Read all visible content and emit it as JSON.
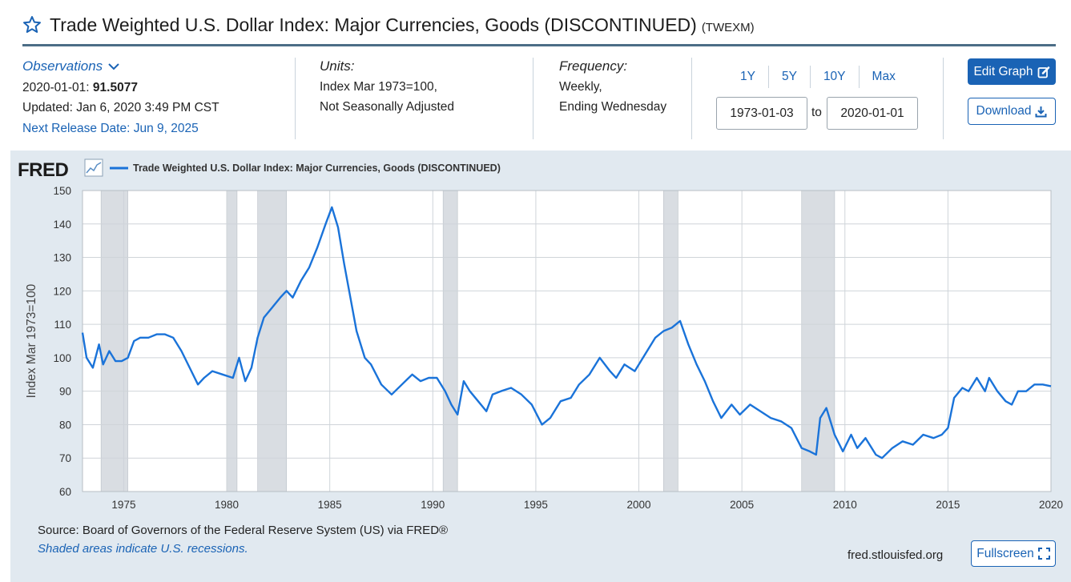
{
  "header": {
    "title": "Trade Weighted U.S. Dollar Index: Major Currencies, Goods (DISCONTINUED)",
    "series_id": "(TWEXM)"
  },
  "meta": {
    "observations_label": "Observations",
    "observation_date": "2020-01-01:",
    "observation_value": "91.5077",
    "updated": "Updated: Jan 6, 2020 3:49 PM CST",
    "next_release": "Next Release Date: Jun 9, 2025",
    "units_head": "Units:",
    "units_line1": "Index Mar 1973=100,",
    "units_line2": "Not Seasonally Adjusted",
    "frequency_head": "Frequency:",
    "frequency_line1": "Weekly,",
    "frequency_line2": "Ending Wednesday"
  },
  "range": {
    "links": [
      "1Y",
      "5Y",
      "10Y",
      "Max"
    ],
    "start_date": "1973-01-03",
    "to_label": "to",
    "end_date": "2020-01-01"
  },
  "buttons": {
    "edit_graph": "Edit Graph",
    "download": "Download",
    "fullscreen": "Fullscreen"
  },
  "footer": {
    "source": "Source: Board of Governors of the Federal Reserve System (US) via FRED®",
    "recession_note": "Shaded areas indicate U.S. recessions.",
    "site": "fred.stlouisfed.org"
  },
  "brand": {
    "logo_text": "FRED"
  },
  "chart_data": {
    "type": "line",
    "legend": "Trade Weighted U.S. Dollar Index: Major Currencies, Goods (DISCONTINUED)",
    "legend_position": "top-left",
    "ylabel": "Index Mar 1973=100",
    "xlim": [
      1973.0,
      2020.0
    ],
    "ylim": [
      60,
      150
    ],
    "x_ticks": [
      1975,
      1980,
      1985,
      1990,
      1995,
      2000,
      2005,
      2010,
      2015,
      2020
    ],
    "y_ticks": [
      60,
      70,
      80,
      90,
      100,
      110,
      120,
      130,
      140,
      150
    ],
    "grid": true,
    "line_color": "#1a73d9",
    "recession_color": "#d9dde2",
    "recessions": [
      [
        1973.9,
        1975.2
      ],
      [
        1980.0,
        1980.5
      ],
      [
        1981.5,
        1982.9
      ],
      [
        1990.5,
        1991.2
      ],
      [
        2001.2,
        2001.9
      ],
      [
        2007.9,
        2009.5
      ]
    ],
    "series": [
      {
        "x": [
          1973.0,
          1973.2,
          1973.5,
          1973.8,
          1974.0,
          1974.3,
          1974.6,
          1974.9,
          1975.2,
          1975.5,
          1975.8,
          1976.2,
          1976.6,
          1977.0,
          1977.4,
          1977.8,
          1978.2,
          1978.6,
          1978.9,
          1979.3,
          1979.8,
          1980.3,
          1980.6,
          1980.9,
          1981.2,
          1981.5,
          1981.8,
          1982.2,
          1982.6,
          1982.9,
          1983.2,
          1983.6,
          1984.0,
          1984.4,
          1984.8,
          1985.1,
          1985.4,
          1985.7,
          1986.0,
          1986.3,
          1986.7,
          1987.0,
          1987.5,
          1988.0,
          1988.5,
          1989.0,
          1989.4,
          1989.8,
          1990.2,
          1990.6,
          1990.9,
          1991.2,
          1991.5,
          1991.8,
          1992.2,
          1992.6,
          1992.9,
          1993.3,
          1993.8,
          1994.3,
          1994.8,
          1995.3,
          1995.7,
          1996.2,
          1996.7,
          1997.1,
          1997.6,
          1998.1,
          1998.6,
          1998.9,
          1999.3,
          1999.8,
          2000.3,
          2000.8,
          2001.2,
          2001.6,
          2002.0,
          2002.4,
          2002.8,
          2003.2,
          2003.6,
          2004.0,
          2004.5,
          2004.9,
          2005.4,
          2005.9,
          2006.4,
          2006.9,
          2007.4,
          2007.9,
          2008.3,
          2008.6,
          2008.8,
          2009.1,
          2009.5,
          2009.9,
          2010.3,
          2010.6,
          2011.0,
          2011.5,
          2011.8,
          2012.3,
          2012.8,
          2013.3,
          2013.8,
          2014.3,
          2014.7,
          2015.0,
          2015.3,
          2015.7,
          2016.0,
          2016.4,
          2016.8,
          2017.0,
          2017.4,
          2017.8,
          2018.1,
          2018.4,
          2018.8,
          2019.2,
          2019.6,
          2020.0
        ],
        "y": [
          107.5,
          100,
          97,
          104,
          98,
          102,
          99,
          99,
          100,
          105,
          106,
          106,
          107,
          107,
          106,
          102,
          97,
          92,
          94,
          96,
          95,
          94,
          100,
          93,
          97,
          106,
          112,
          115,
          118,
          120,
          118,
          123,
          127,
          133,
          140,
          145,
          139,
          128,
          118,
          108,
          100,
          98,
          92,
          89,
          92,
          95,
          93,
          94,
          94,
          90,
          86,
          83,
          93,
          90,
          87,
          84,
          89,
          90,
          91,
          89,
          86,
          80,
          82,
          87,
          88,
          92,
          95,
          100,
          96,
          94,
          98,
          96,
          101,
          106,
          108,
          109,
          111,
          104,
          98,
          93,
          87,
          82,
          86,
          83,
          86,
          84,
          82,
          81,
          79,
          73,
          72,
          71,
          82,
          85,
          77,
          72,
          77,
          73,
          76,
          71,
          70,
          73,
          75,
          74,
          77,
          76,
          77,
          79,
          88,
          91,
          90,
          94,
          90,
          94,
          90,
          87,
          86,
          90,
          90,
          92,
          92,
          91.5
        ]
      }
    ]
  }
}
